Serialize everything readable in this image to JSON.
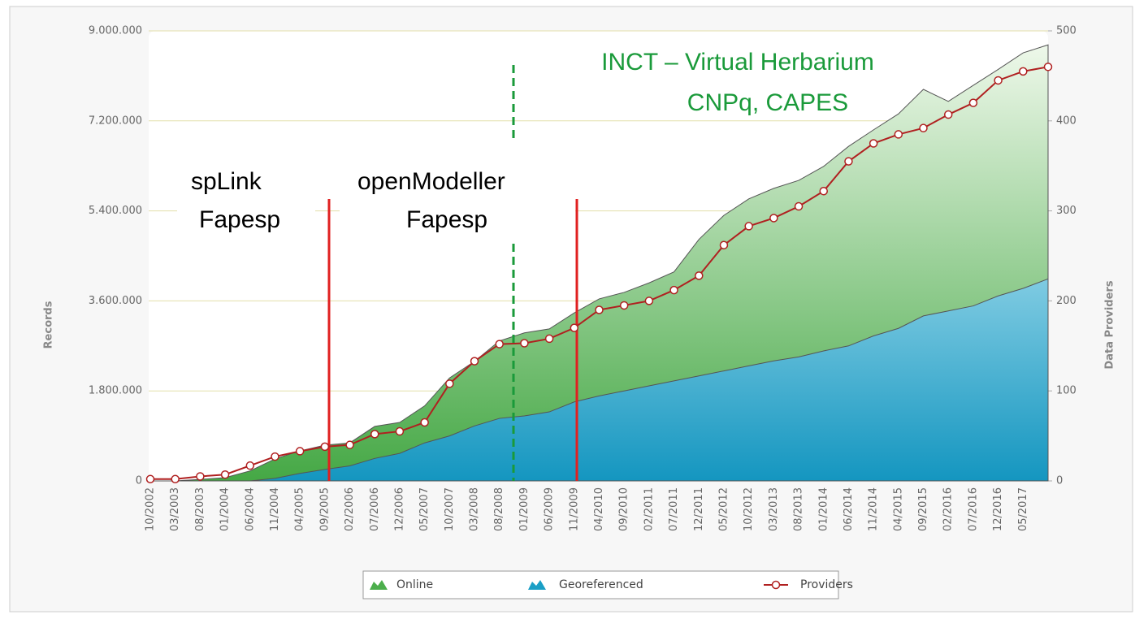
{
  "chart_data": {
    "type": "area",
    "categories": [
      "10/2002",
      "03/2003",
      "08/2003",
      "01/2004",
      "06/2004",
      "11/2004",
      "04/2005",
      "09/2005",
      "02/2006",
      "07/2006",
      "12/2006",
      "05/2007",
      "10/2007",
      "03/2008",
      "08/2008",
      "01/2009",
      "06/2009",
      "11/2009",
      "04/2010",
      "09/2010",
      "02/2011",
      "07/2011",
      "12/2011",
      "05/2012",
      "10/2012",
      "03/2013",
      "08/2013",
      "01/2014",
      "06/2014",
      "11/2014",
      "04/2015",
      "09/2015",
      "02/2016",
      "07/2016",
      "12/2016",
      "05/2017",
      null
    ],
    "series": [
      {
        "name": "Online",
        "type": "area",
        "color": "#4cae4c",
        "values": [
          0,
          0,
          30000,
          65000,
          200000,
          440000,
          600000,
          715000,
          760000,
          1090000,
          1170000,
          1500000,
          2060000,
          2390000,
          2800000,
          2960000,
          3040000,
          3360000,
          3640000,
          3770000,
          3960000,
          4180000,
          4830000,
          5310000,
          5640000,
          5850000,
          6010000,
          6290000,
          6690000,
          7020000,
          7340000,
          7830000,
          7590000,
          7910000,
          8230000,
          8560000,
          8720000
        ]
      },
      {
        "name": "Georeferenced",
        "type": "area",
        "color": "#1a9fc6",
        "values": [
          0,
          0,
          0,
          0,
          0,
          50000,
          150000,
          230000,
          300000,
          450000,
          550000,
          760000,
          900000,
          1100000,
          1250000,
          1300000,
          1380000,
          1580000,
          1700000,
          1800000,
          1900000,
          2000000,
          2100000,
          2200000,
          2300000,
          2400000,
          2480000,
          2600000,
          2700000,
          2900000,
          3050000,
          3300000,
          3400000,
          3500000,
          3700000,
          3850000,
          4040000
        ]
      },
      {
        "name": "Providers",
        "type": "line",
        "axis": "y2",
        "color": "#b02020",
        "values": [
          2,
          2,
          5,
          7,
          17,
          27,
          33,
          38,
          40,
          52,
          55,
          65,
          108,
          133,
          152,
          153,
          158,
          170,
          190,
          195,
          200,
          212,
          228,
          262,
          283,
          292,
          305,
          322,
          355,
          375,
          385,
          392,
          407,
          420,
          445,
          455,
          460
        ]
      }
    ],
    "ylabel": "Records",
    "y2label": "Data Providers",
    "ylim": [
      0,
      9000000
    ],
    "yticks": [
      {
        "value": 0,
        "label": "0"
      },
      {
        "value": 1800000,
        "label": "1.800.000"
      },
      {
        "value": 3600000,
        "label": "3.600.000"
      },
      {
        "value": 5400000,
        "label": "5.400.000"
      },
      {
        "value": 7200000,
        "label": "7.200.000"
      },
      {
        "value": 9000000,
        "label": "9.000.000"
      }
    ],
    "y2lim": [
      0,
      500
    ],
    "y2ticks": [
      0,
      100,
      200,
      300,
      400,
      500
    ],
    "grid": true,
    "legend": "bottom",
    "annotations": [
      "spLink",
      "Fapesp",
      "openModeller",
      "Fapesp",
      "INCT – Virtual Herbarium",
      "CNPq, CAPES"
    ]
  }
}
